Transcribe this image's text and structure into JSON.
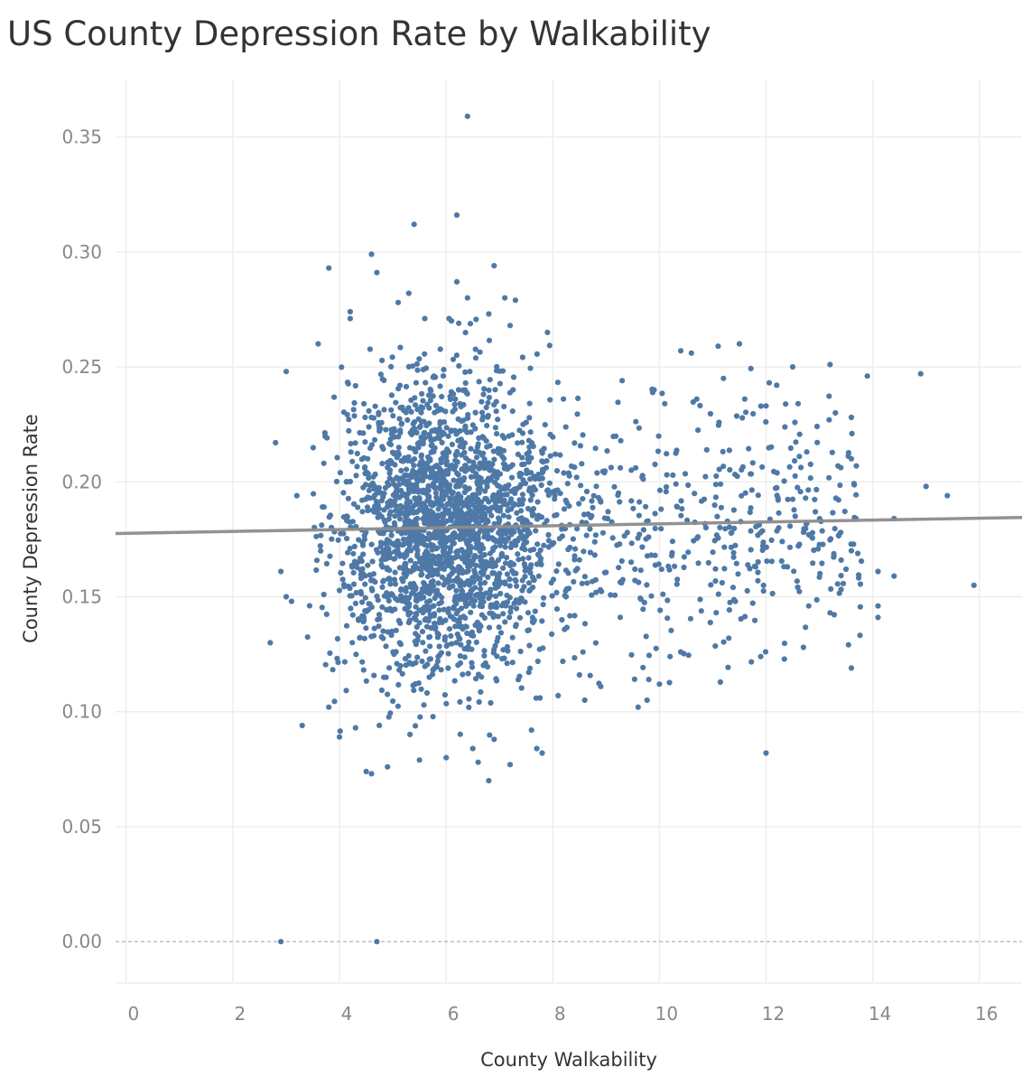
{
  "chart_data": {
    "type": "scatter",
    "title": "US County Depression Rate by Walkability",
    "xlabel": "County Walkability",
    "ylabel": "County Depression Rate",
    "xlim": [
      -0.2,
      16.8
    ],
    "ylim": [
      -0.018,
      0.375
    ],
    "x_ticks": [
      0,
      2,
      4,
      6,
      8,
      10,
      12,
      14,
      16
    ],
    "y_ticks": [
      0.0,
      0.05,
      0.1,
      0.15,
      0.2,
      0.25,
      0.3,
      0.35
    ],
    "x_tick_labels": [
      "0",
      "2",
      "4",
      "6",
      "8",
      "10",
      "12",
      "14",
      "16"
    ],
    "y_tick_labels": [
      "0.00",
      "0.05",
      "0.10",
      "0.15",
      "0.20",
      "0.25",
      "0.30",
      "0.35"
    ],
    "grid": true,
    "colors": {
      "points": "#4e79a7",
      "trend": "#8c8c8c"
    },
    "trend_line": {
      "x": [
        -0.2,
        16.8
      ],
      "y": [
        0.1775,
        0.1845
      ]
    },
    "series": [
      {
        "values": [
          [
            6.4,
            0.359
          ],
          [
            6.2,
            0.316
          ],
          [
            5.4,
            0.312
          ],
          [
            3.8,
            0.293
          ],
          [
            4.6,
            0.299
          ],
          [
            4.7,
            0.291
          ],
          [
            6.9,
            0.294
          ],
          [
            6.2,
            0.287
          ],
          [
            5.1,
            0.278
          ],
          [
            5.3,
            0.282
          ],
          [
            6.4,
            0.28
          ],
          [
            7.1,
            0.28
          ],
          [
            7.3,
            0.279
          ],
          [
            4.2,
            0.274
          ],
          [
            4.2,
            0.271
          ],
          [
            5.6,
            0.271
          ],
          [
            6.1,
            0.27
          ],
          [
            7.2,
            0.268
          ],
          [
            6.8,
            0.273
          ],
          [
            7.9,
            0.265
          ],
          [
            3.6,
            0.26
          ],
          [
            10.4,
            0.257
          ],
          [
            11.1,
            0.259
          ],
          [
            11.5,
            0.26
          ],
          [
            10.6,
            0.256
          ],
          [
            3.0,
            0.248
          ],
          [
            12.5,
            0.25
          ],
          [
            13.2,
            0.251
          ],
          [
            13.9,
            0.246
          ],
          [
            14.9,
            0.247
          ],
          [
            9.3,
            0.244
          ],
          [
            8.2,
            0.236
          ],
          [
            9.9,
            0.24
          ],
          [
            10.1,
            0.234
          ],
          [
            10.7,
            0.236
          ],
          [
            11.2,
            0.245
          ],
          [
            11.6,
            0.236
          ],
          [
            12.0,
            0.233
          ],
          [
            12.2,
            0.242
          ],
          [
            12.6,
            0.234
          ],
          [
            13.3,
            0.23
          ],
          [
            13.6,
            0.228
          ],
          [
            2.8,
            0.217
          ],
          [
            3.2,
            0.194
          ],
          [
            2.7,
            0.13
          ],
          [
            2.9,
            0.161
          ],
          [
            3.0,
            0.15
          ],
          [
            3.1,
            0.148
          ],
          [
            3.3,
            0.094
          ],
          [
            3.8,
            0.102
          ],
          [
            4.0,
            0.089
          ],
          [
            4.3,
            0.093
          ],
          [
            4.5,
            0.074
          ],
          [
            4.6,
            0.073
          ],
          [
            4.9,
            0.076
          ],
          [
            5.5,
            0.079
          ],
          [
            6.0,
            0.08
          ],
          [
            6.5,
            0.084
          ],
          [
            6.6,
            0.078
          ],
          [
            6.8,
            0.07
          ],
          [
            6.9,
            0.088
          ],
          [
            7.2,
            0.077
          ],
          [
            7.7,
            0.084
          ],
          [
            7.8,
            0.082
          ],
          [
            7.6,
            0.092
          ],
          [
            8.1,
            0.107
          ],
          [
            8.5,
            0.116
          ],
          [
            8.6,
            0.105
          ],
          [
            8.9,
            0.111
          ],
          [
            9.6,
            0.102
          ],
          [
            9.8,
            0.114
          ],
          [
            10.0,
            0.112
          ],
          [
            10.2,
            0.124
          ],
          [
            10.4,
            0.126
          ],
          [
            11.3,
            0.132
          ],
          [
            11.9,
            0.124
          ],
          [
            12.0,
            0.082
          ],
          [
            12.7,
            0.128
          ],
          [
            13.2,
            0.143
          ],
          [
            13.6,
            0.119
          ],
          [
            14.1,
            0.146
          ],
          [
            14.1,
            0.141
          ],
          [
            14.4,
            0.159
          ],
          [
            14.1,
            0.161
          ],
          [
            15.0,
            0.198
          ],
          [
            15.4,
            0.194
          ],
          [
            15.9,
            0.155
          ],
          [
            14.4,
            0.184
          ],
          [
            13.6,
            0.21
          ],
          [
            13.6,
            0.17
          ],
          [
            13.5,
            0.162
          ],
          [
            13.4,
            0.178
          ],
          [
            12.8,
            0.177
          ],
          [
            12.4,
            0.163
          ],
          [
            12.8,
            0.146
          ],
          [
            2.9,
            0.0
          ],
          [
            4.7,
            0.0
          ]
        ]
      }
    ]
  }
}
